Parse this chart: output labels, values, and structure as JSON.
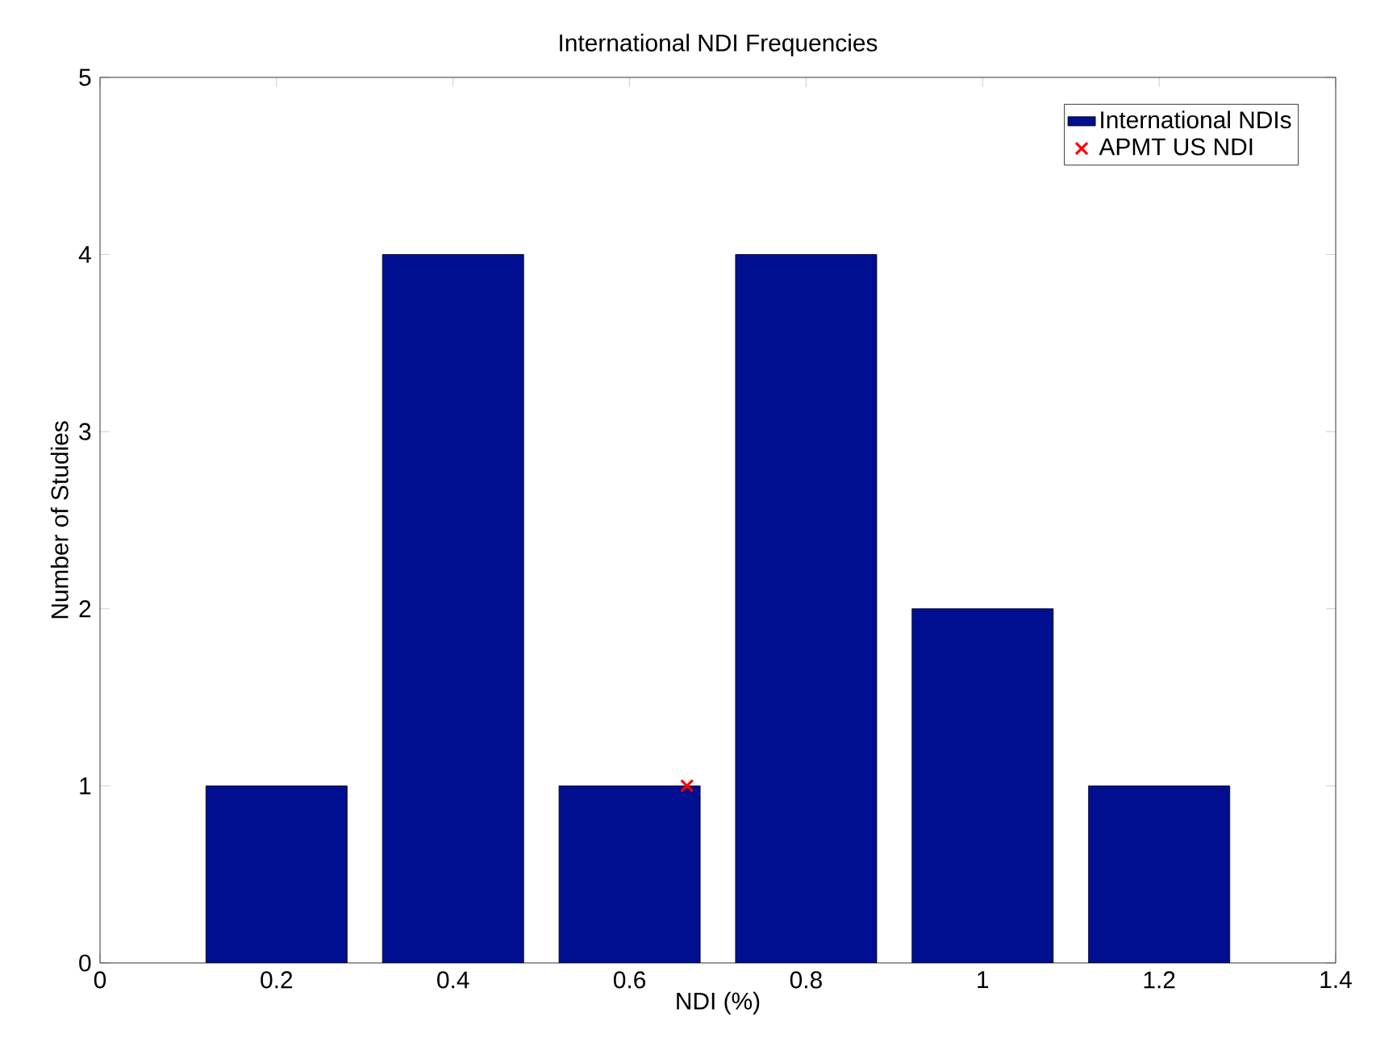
{
  "chart_data": {
    "type": "bar",
    "title": "International NDI Frequencies",
    "xlabel": "NDI (%)",
    "ylabel": "Number of Studies",
    "x": [
      0.2,
      0.4,
      0.6,
      0.8,
      1,
      1.2
    ],
    "series": [
      {
        "name": "International NDIs",
        "color": "#000f8f",
        "values": [
          1,
          4,
          1,
          4,
          2,
          1
        ]
      },
      {
        "name": "APMT US NDI",
        "type": "scatter",
        "color": "#ff0000",
        "x": [
          0.665
        ],
        "values": [
          1
        ],
        "marker": "cross"
      }
    ],
    "xlim": [
      0,
      1.4
    ],
    "xticks": [
      0,
      0.2,
      0.4,
      0.6,
      0.8,
      1,
      1.2,
      1.4
    ],
    "ylim": [
      0,
      5
    ],
    "yticks": [
      0,
      1,
      2,
      3,
      4,
      5
    ],
    "grid": false,
    "legend": "top right"
  }
}
